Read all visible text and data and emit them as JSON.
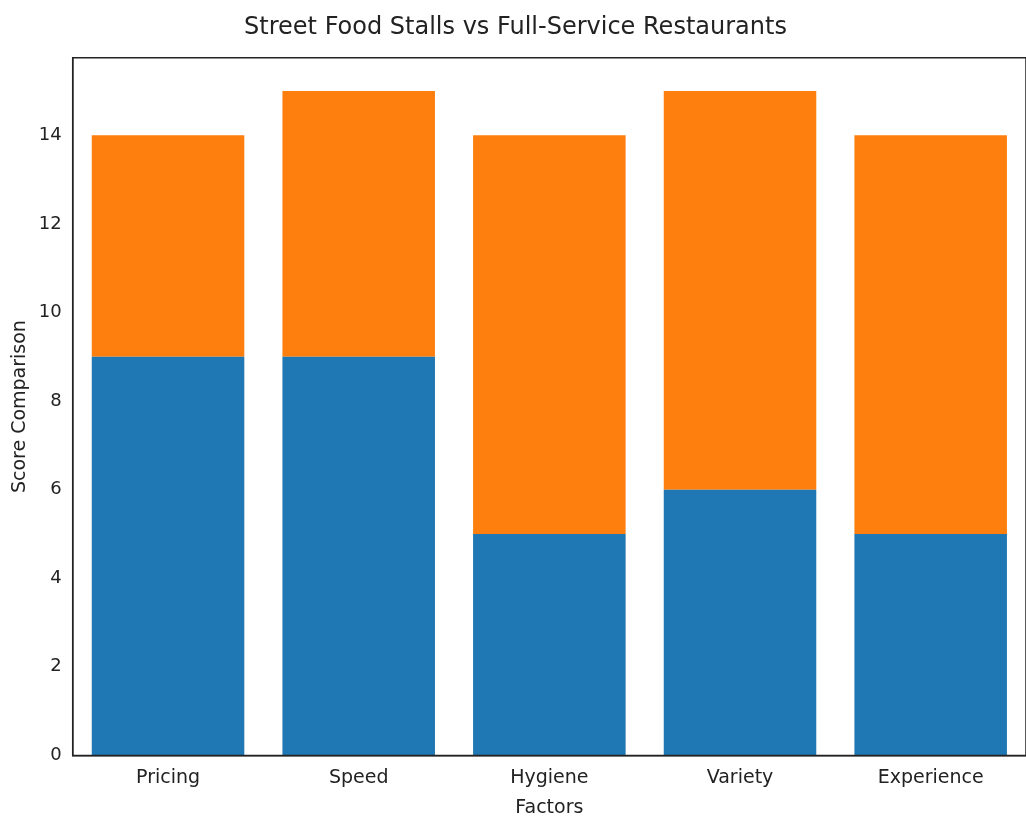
{
  "chart_data": {
    "type": "bar",
    "title": "Street Food Stalls vs Full-Service Restaurants",
    "xlabel": "Factors",
    "ylabel": "Score Comparison",
    "categories": [
      "Pricing",
      "Speed",
      "Hygiene",
      "Variety",
      "Experience"
    ],
    "stacked": true,
    "series": [
      {
        "color": "#1f77b4",
        "values": [
          9,
          9,
          5,
          6,
          5
        ]
      },
      {
        "color": "#ff7f0e",
        "values": [
          5,
          6,
          9,
          9,
          9
        ]
      }
    ],
    "ylim": [
      0,
      15.75
    ],
    "yticks": [
      0,
      2,
      4,
      6,
      8,
      10,
      12,
      14
    ],
    "grid": false,
    "legend": false
  }
}
